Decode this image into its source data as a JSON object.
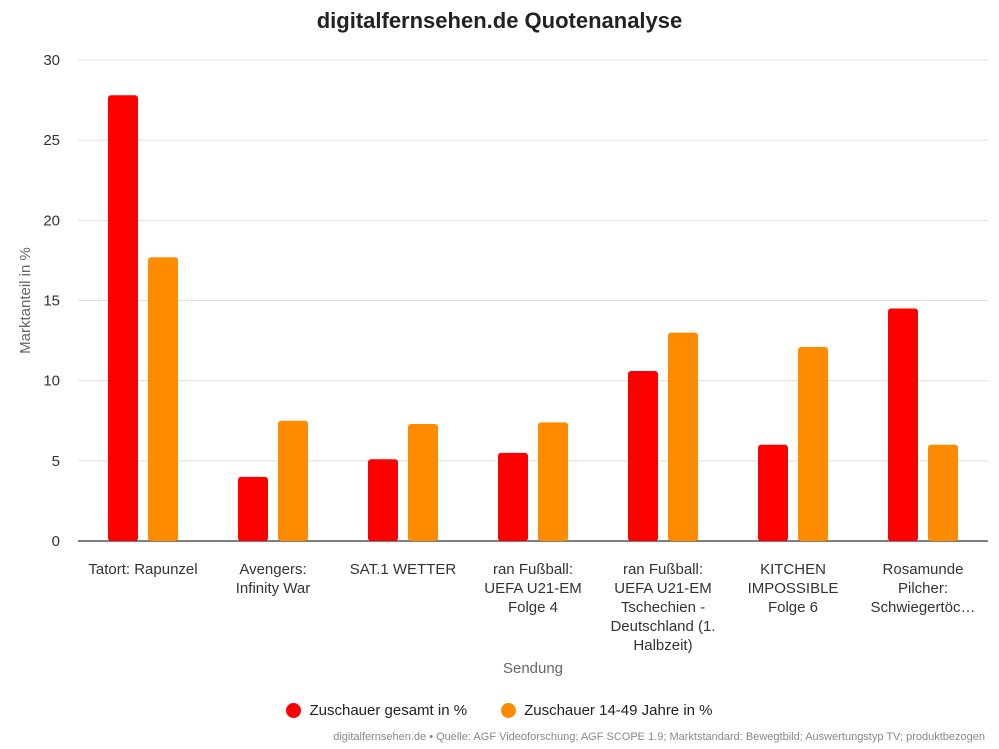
{
  "chart_data": {
    "type": "bar",
    "title": "digitalfernsehen.de Quotenanalyse",
    "xlabel": "Sendung",
    "ylabel": "Marktanteil in %",
    "ylim": [
      0,
      30
    ],
    "yticks": [
      0,
      5,
      10,
      15,
      20,
      25,
      30
    ],
    "grid": true,
    "legend": "bottom",
    "categories": [
      "Tatort: Rapunzel",
      "Avengers: Infinity War",
      "SAT.1 WETTER",
      "ran Fußball: UEFA U21-EM Folge 4",
      "ran Fußball: UEFA U21-EM Tschechien - Deutschland (1. Halbzeit)",
      "KITCHEN IMPOSSIBLE Folge 6",
      "Rosamunde Pilcher: Schwiegertöc…"
    ],
    "category_lines": [
      [
        "Tatort: Rapunzel"
      ],
      [
        "Avengers:",
        "Infinity War"
      ],
      [
        "SAT.1 WETTER"
      ],
      [
        "ran Fußball:",
        "UEFA U21-EM",
        "Folge 4"
      ],
      [
        "ran Fußball:",
        "UEFA U21-EM",
        "Tschechien -",
        "Deutschland (1.",
        "Halbzeit)"
      ],
      [
        "KITCHEN",
        "IMPOSSIBLE",
        "Folge 6"
      ],
      [
        "Rosamunde",
        "Pilcher:",
        "Schwiegertöc…"
      ]
    ],
    "series": [
      {
        "name": "Zuschauer gesamt in %",
        "color": "#ff0000",
        "values": [
          27.8,
          4.0,
          5.1,
          5.5,
          10.6,
          6.0,
          14.5
        ]
      },
      {
        "name": "Zuschauer 14-49 Jahre in %",
        "color": "#ff8c00",
        "values": [
          17.7,
          7.5,
          7.3,
          7.4,
          13.0,
          12.1,
          6.0
        ]
      }
    ],
    "source": "digitalfernsehen.de • Quelle: AGF Videoforschung; AGF SCOPE 1.9; Marktstandard: Bewegtbild; Auswertungstyp TV; produktbezogen"
  }
}
